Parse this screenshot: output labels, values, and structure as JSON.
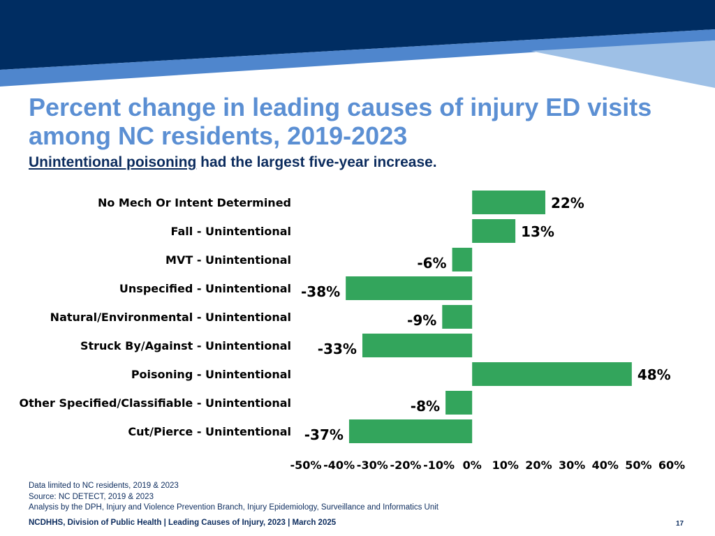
{
  "header": {
    "title": "Percent change in leading causes of injury ED visits among NC residents, 2019-2023",
    "subtitle_underlined": "Unintentional poisoning",
    "subtitle_rest": " had the largest five-year increase."
  },
  "chart_data": {
    "type": "bar",
    "orientation": "horizontal",
    "categories": [
      "No Mech Or Intent Determined",
      "Fall - Unintentional",
      "MVT - Unintentional",
      "Unspecified - Unintentional",
      "Natural/Environmental - Unintentional",
      "Struck By/Against - Unintentional",
      "Poisoning - Unintentional",
      "Other Specified/Classifiable - Unintentional",
      "Cut/Pierce - Unintentional"
    ],
    "values": [
      22,
      13,
      -6,
      -38,
      -9,
      -33,
      48,
      -8,
      -37
    ],
    "data_labels": [
      "22%",
      "13%",
      "-6%",
      "-38%",
      "-9%",
      "-33%",
      "48%",
      "-8%",
      "-37%"
    ],
    "xlim": [
      -50,
      60
    ],
    "xticks": [
      -50,
      -40,
      -30,
      -20,
      -10,
      0,
      10,
      20,
      30,
      40,
      50,
      60
    ],
    "xtick_labels": [
      "-50%",
      "-40%",
      "-30%",
      "-20%",
      "-10%",
      "0%",
      "10%",
      "20%",
      "30%",
      "40%",
      "50%",
      "60%"
    ],
    "bar_color": "#33a55c",
    "grid": false,
    "legend": false
  },
  "notes": [
    "Data limited to NC residents, 2019 & 2023",
    "Source: NC DETECT, 2019 & 2023",
    "Analysis by the DPH, Injury and Violence Prevention Branch, Injury Epidemiology, Surveillance and Informatics Unit"
  ],
  "footer": {
    "text": "NCDHHS, Division of Public Health | Leading Causes of Injury, 2023 | March 2025",
    "page_number": "17"
  },
  "colors": {
    "banner_dark": "#002d62",
    "banner_mid": "#4f86cd",
    "banner_light": "#9ec0e6",
    "title": "#5b8fd3",
    "text_dark": "#0c2c5e"
  }
}
